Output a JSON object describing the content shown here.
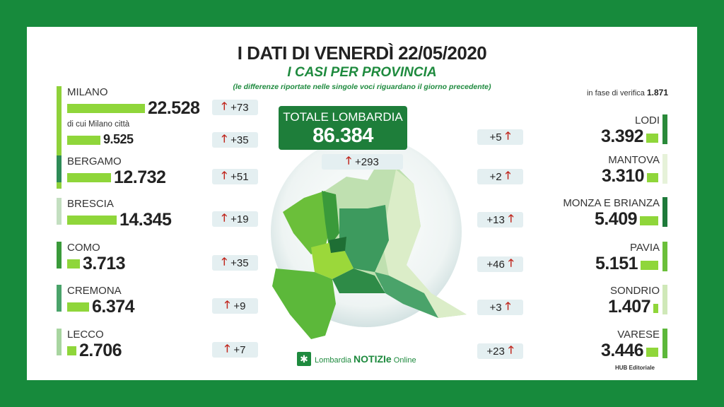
{
  "header": {
    "title": "I DATI DI VENERDÌ 22/05/2020",
    "subtitle": "I CASI PER PROVINCIA",
    "note": "(le differenze riportate nelle singole voci riguardano il giorno precedente)",
    "verifica_label": "in fase di verifica",
    "verifica_value": "1.871"
  },
  "totale": {
    "label": "TOTALE LOMBARDIA",
    "value": "86.384",
    "delta": "+293"
  },
  "left": [
    {
      "name": "MILANO",
      "value": "22.528",
      "delta": "+73",
      "color": "#8fd13a"
    },
    {
      "name": "di cui Milano città",
      "value": "9.525",
      "delta": "+35",
      "color": "#8fd13a",
      "sub": true
    },
    {
      "name": "BERGAMO",
      "value": "12.732",
      "delta": "+51",
      "color": "#2e8b57"
    },
    {
      "name": "BRESCIA",
      "value": "14.345",
      "delta": "+19",
      "color": "#c3dfc0"
    },
    {
      "name": "COMO",
      "value": "3.713",
      "delta": "+35",
      "color": "#3a9a3a"
    },
    {
      "name": "CREMONA",
      "value": "6.374",
      "delta": "+9",
      "color": "#4aa36a"
    },
    {
      "name": "LECCO",
      "value": "2.706",
      "delta": "+7",
      "color": "#a8d5a0"
    }
  ],
  "right": [
    {
      "name": "LODI",
      "value": "3.392",
      "delta": "+5",
      "color": "#2a8a3a"
    },
    {
      "name": "MANTOVA",
      "value": "3.310",
      "delta": "+2",
      "color": "#e6f2d9"
    },
    {
      "name": "MONZA E BRIANZA",
      "value": "5.409",
      "delta": "+13",
      "color": "#1e7a3a"
    },
    {
      "name": "PAVIA",
      "value": "5.151",
      "delta": "+46",
      "color": "#6bbf3a"
    },
    {
      "name": "SONDRIO",
      "value": "1.407",
      "delta": "+3",
      "color": "#cfe8b8"
    },
    {
      "name": "VARESE",
      "value": "3.446",
      "delta": "+23",
      "color": "#5cb83a"
    }
  ],
  "footer": {
    "logo_text1": "Lombardia",
    "logo_text2": "NOTIZIe",
    "logo_text3": "Online",
    "credit": "HUB Editoriale"
  },
  "colors": {
    "frame": "#178a3c",
    "bar": "#8fd63a",
    "arrow": "#c0271e",
    "accent": "#1e8a3e"
  }
}
